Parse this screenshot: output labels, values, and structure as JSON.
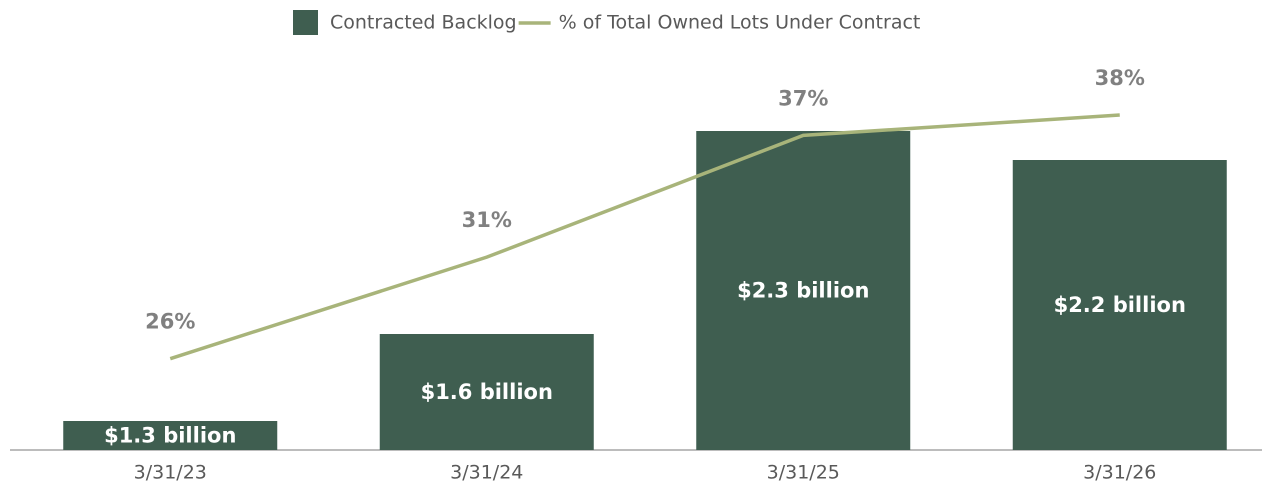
{
  "chart_data": {
    "type": "bar",
    "categories": [
      "3/31/23",
      "3/31/24",
      "3/31/25",
      "3/31/26"
    ],
    "series": [
      {
        "name": "Contracted Backlog",
        "type": "bar",
        "color": "#3f5e50",
        "values": [
          1.3,
          1.6,
          2.3,
          2.2
        ],
        "value_labels": [
          "$1.3 billion",
          "$1.6 billion",
          "$2.3 billion",
          "$2.2 billion"
        ]
      },
      {
        "name": "% of Total Owned Lots Under Contract",
        "type": "line",
        "axis": "y2",
        "color": "#a8b47a",
        "values": [
          26,
          31,
          37,
          38
        ],
        "value_labels": [
          "26%",
          "31%",
          "37%",
          "38%"
        ]
      }
    ],
    "ylim": [
      1.2,
      2.6
    ],
    "y2lim": [
      21.5,
      41.5
    ],
    "legend": "top"
  }
}
